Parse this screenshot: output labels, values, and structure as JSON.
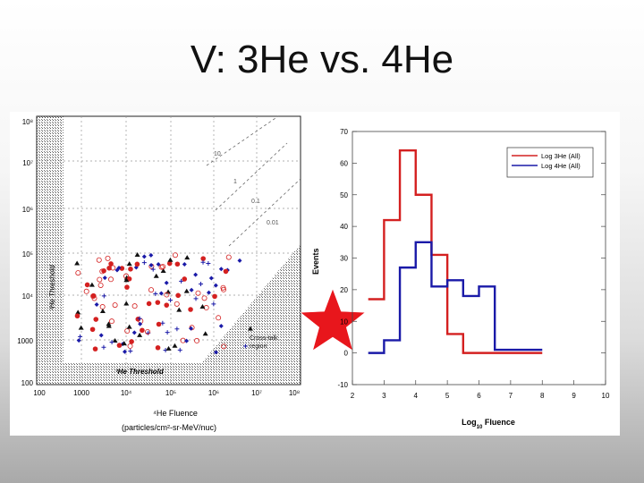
{
  "slide": {
    "title": "V: 3He vs. 4He"
  },
  "left_plot": {
    "y_tick_labels": [
      "10⁸",
      "10⁷",
      "10⁶",
      "10⁵",
      "10⁴",
      "1000",
      "100"
    ],
    "x_tick_labels": [
      "100",
      "1000",
      "10⁴",
      "10⁵",
      "10⁶",
      "10⁷",
      "10⁸"
    ],
    "x_title": "⁴He Fluence",
    "x_units": "(particles/cm²-sr-MeV/nuc)",
    "y_side_label": "³He Threshold",
    "bottom_label": "³He Threshold",
    "ratio_labels": [
      "10",
      "1",
      "0.1",
      "0.01"
    ],
    "region_label_1": "Cross-talk",
    "region_label_2": "region"
  },
  "chart_data": {
    "type": "line",
    "xlabel": "Log10 Fluence",
    "ylabel": "Events",
    "xlim": [
      2,
      10
    ],
    "ylim": [
      -10,
      70
    ],
    "x_ticks": [
      2,
      3,
      4,
      5,
      6,
      7,
      8,
      9,
      10
    ],
    "y_ticks": [
      -10,
      0,
      10,
      20,
      30,
      40,
      50,
      60,
      70
    ],
    "legend_position": "top-right",
    "bin_edges": [
      2.5,
      3.0,
      3.5,
      4.0,
      4.5,
      5.0,
      5.5,
      6.0,
      6.5,
      7.0,
      7.5,
      8.0
    ],
    "series": [
      {
        "name": "Log 3He (All)",
        "color": "#d42020",
        "values": [
          17,
          42,
          64,
          50,
          31,
          6,
          0,
          0,
          0,
          0,
          0
        ]
      },
      {
        "name": "Log 4He (All)",
        "color": "#1a1aa8",
        "values": [
          0,
          4,
          27,
          35,
          21,
          23,
          18,
          21,
          1,
          1,
          1
        ]
      }
    ]
  },
  "colors": {
    "star": "#e8161c",
    "red_series": "#d42020",
    "blue_series": "#1a1aa8"
  }
}
